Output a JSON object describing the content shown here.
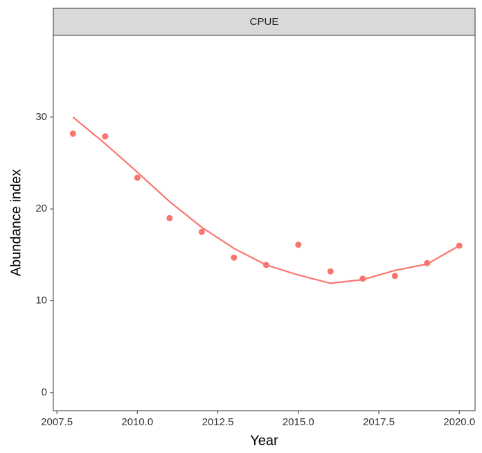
{
  "chart_data": {
    "type": "scatter",
    "title": "CPUE",
    "x_label": "Year",
    "y_label": "Abundance index",
    "x": [
      2008,
      2009,
      2010,
      2011,
      2012,
      2013,
      2014,
      2015,
      2016,
      2017,
      2018,
      2019,
      2020
    ],
    "series": [
      {
        "style": "points",
        "color": "#F8766D",
        "values": [
          28.2,
          27.9,
          23.4,
          19.0,
          17.5,
          14.7,
          13.9,
          16.1,
          13.2,
          12.4,
          12.7,
          14.1,
          16.0
        ]
      },
      {
        "style": "line",
        "color": "#F8766D",
        "values": [
          30.0,
          27.1,
          24.0,
          20.8,
          18.0,
          15.7,
          13.9,
          12.8,
          11.9,
          12.3,
          13.3,
          14.0,
          16.0
        ]
      }
    ],
    "xlim": [
      2007.39,
      2020.49
    ],
    "xticks": [
      2007.5,
      {
        "value": 2010,
        "label": "2010.0"
      },
      2012.5,
      {
        "value": 2015,
        "label": "2015.0"
      },
      2017.5,
      {
        "value": 2020,
        "label": "2020.0"
      }
    ],
    "ylim": [
      -1.97,
      38.9
    ],
    "yticks": [
      0,
      10,
      20,
      30
    ],
    "grid": false
  }
}
